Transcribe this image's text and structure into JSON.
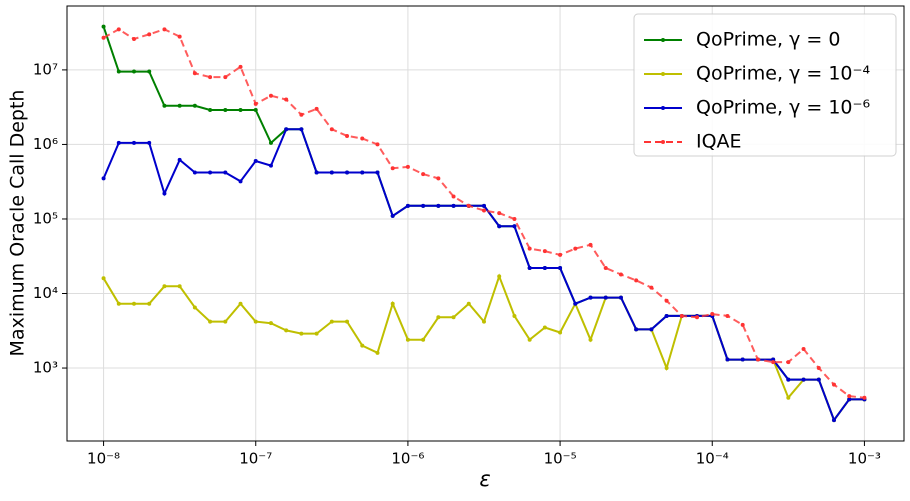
{
  "chart_data": {
    "type": "line",
    "x_label": "ε",
    "y_label": "Maximum Oracle Call Depth",
    "log_x": true,
    "log_y": true,
    "grid": true,
    "legend": "upper right",
    "xlim": [
      5.75e-09,
      0.00182
    ],
    "ylim": [
      105,
      72000000.0
    ],
    "xticks": [
      {
        "value": 1e-08,
        "label": "10⁻⁸"
      },
      {
        "value": 1e-07,
        "label": "10⁻⁷"
      },
      {
        "value": 1e-06,
        "label": "10⁻⁶"
      },
      {
        "value": 1e-05,
        "label": "10⁻⁵"
      },
      {
        "value": 0.0001,
        "label": "10⁻⁴"
      },
      {
        "value": 0.001,
        "label": "10⁻³"
      }
    ],
    "yticks": [
      {
        "value": 1000,
        "label": "10³"
      },
      {
        "value": 10000,
        "label": "10⁴"
      },
      {
        "value": 100000,
        "label": "10⁵"
      },
      {
        "value": 1000000,
        "label": "10⁶"
      },
      {
        "value": 10000000,
        "label": "10⁷"
      }
    ],
    "x": [
      1e-08,
      1.259e-08,
      1.585e-08,
      1.995e-08,
      2.512e-08,
      3.162e-08,
      3.981e-08,
      5.012e-08,
      6.31e-08,
      7.943e-08,
      1e-07,
      1.259e-07,
      1.585e-07,
      1.995e-07,
      2.512e-07,
      3.162e-07,
      3.981e-07,
      5.012e-07,
      6.31e-07,
      7.943e-07,
      1e-06,
      1.259e-06,
      1.585e-06,
      1.995e-06,
      2.512e-06,
      3.162e-06,
      3.981e-06,
      5.012e-06,
      6.31e-06,
      7.943e-06,
      1e-05,
      1.259e-05,
      1.585e-05,
      1.995e-05,
      2.512e-05,
      3.162e-05,
      3.981e-05,
      5.012e-05,
      6.31e-05,
      7.943e-05,
      0.0001,
      0.0001259,
      0.0001585,
      0.0001995,
      0.0002512,
      0.0003162,
      0.0003981,
      0.0005012,
      0.000631,
      0.0007943,
      0.001
    ],
    "series": [
      {
        "name": "QoPrime, γ = 0",
        "color": "#008000",
        "dash": false,
        "values": [
          38000000,
          9500000,
          9500000,
          9500000,
          3300000,
          3300000,
          3300000,
          2900000,
          2900000,
          2900000,
          2900000,
          1050000,
          1600000,
          1600000,
          420000,
          420000,
          420000,
          420000,
          420000,
          110000,
          150000,
          150000,
          150000,
          150000,
          150000,
          150000,
          80000,
          80000,
          22000,
          22000,
          22000,
          7300,
          8800,
          8800,
          8800,
          3300,
          3300,
          5000,
          5000,
          5000,
          5000,
          1300,
          1300,
          1300,
          1300,
          700,
          700,
          700,
          200,
          380,
          380
        ]
      },
      {
        "name": "QoPrime, γ = 10⁻⁴",
        "color": "#bfbf00",
        "dash": false,
        "values": [
          16000,
          7300,
          7300,
          7300,
          12500,
          12500,
          6500,
          4200,
          4200,
          7300,
          4200,
          4000,
          3200,
          2900,
          2900,
          4200,
          4200,
          2000,
          1600,
          7300,
          2400,
          2400,
          4800,
          4800,
          7300,
          4200,
          17000,
          5000,
          2400,
          3500,
          3000,
          7300,
          2400,
          8800,
          8800,
          3300,
          3300,
          1000,
          5000,
          5000,
          5000,
          1300,
          1300,
          1300,
          1300,
          400,
          700,
          700,
          200,
          380,
          380
        ]
      },
      {
        "name": "QoPrime, γ = 10⁻⁶",
        "color": "#0000cc",
        "dash": false,
        "values": [
          350000,
          1050000,
          1050000,
          1050000,
          220000,
          620000,
          420000,
          420000,
          420000,
          320000,
          600000,
          520000,
          1600000,
          1600000,
          420000,
          420000,
          420000,
          420000,
          420000,
          110000,
          150000,
          150000,
          150000,
          150000,
          150000,
          150000,
          80000,
          80000,
          22000,
          22000,
          22000,
          7300,
          8800,
          8800,
          8800,
          3300,
          3300,
          5000,
          5000,
          5000,
          5000,
          1300,
          1300,
          1300,
          1300,
          700,
          700,
          700,
          200,
          380,
          380
        ]
      },
      {
        "name": "IQAE",
        "color": "#ff3333",
        "dash": true,
        "values": [
          27000000,
          35000000,
          26000000,
          30000000,
          35000000,
          28000000,
          9000000,
          8000000,
          8000000,
          11000000,
          3500000,
          4500000,
          4000000,
          2500000,
          3000000,
          1600000,
          1300000,
          1200000,
          1000000,
          480000,
          500000,
          400000,
          350000,
          200000,
          150000,
          130000,
          120000,
          100000,
          40000,
          37000,
          33000,
          40000,
          45000,
          22000,
          18000,
          15000,
          12000,
          8000,
          5000,
          4800,
          5300,
          5000,
          3800,
          1300,
          1200,
          1200,
          1800,
          1000,
          600,
          420,
          400
        ]
      }
    ]
  }
}
